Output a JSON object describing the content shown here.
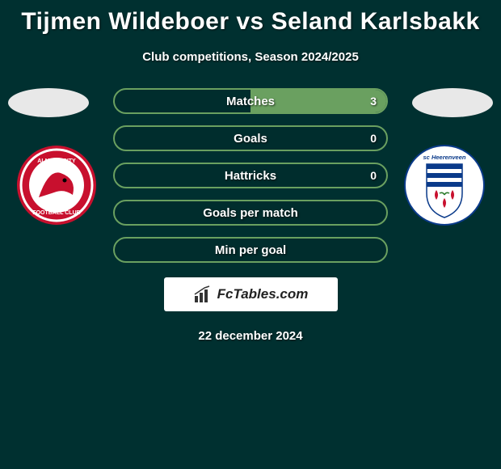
{
  "page": {
    "title": "Tijmen Wildeboer vs Seland Karlsbakk",
    "subtitle": "Club competitions, Season 2024/2025",
    "date": "22 december 2024",
    "background_color": "#003030",
    "text_color": "#ffffff"
  },
  "branding": {
    "text": "FcTables.com",
    "bg_color": "#ffffff",
    "text_color": "#222222"
  },
  "left_club": {
    "name": "Almere City",
    "logo_bg": "#c8102e",
    "logo_ring": "#ffffff"
  },
  "right_club": {
    "name": "SC Heerenveen",
    "logo_bg": "#ffffff",
    "logo_stripes": "#0a3a8a"
  },
  "stats": {
    "type": "comparison-bars",
    "bar_border_color": "#6aa060",
    "bar_fill_color": "#6aa060",
    "label_fontsize": 15,
    "value_fontsize": 14,
    "rows": [
      {
        "label": "Matches",
        "left": "",
        "right": "3",
        "left_pct": 0,
        "right_pct": 100
      },
      {
        "label": "Goals",
        "left": "",
        "right": "0",
        "left_pct": 0,
        "right_pct": 0
      },
      {
        "label": "Hattricks",
        "left": "",
        "right": "0",
        "left_pct": 0,
        "right_pct": 0
      },
      {
        "label": "Goals per match",
        "left": "",
        "right": "",
        "left_pct": 0,
        "right_pct": 0
      },
      {
        "label": "Min per goal",
        "left": "",
        "right": "",
        "left_pct": 0,
        "right_pct": 0
      }
    ]
  }
}
